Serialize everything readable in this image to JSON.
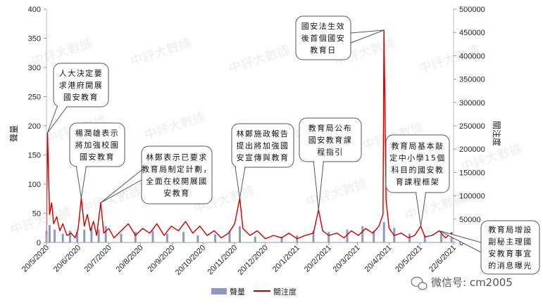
{
  "chart_data": {
    "type": "bar+line",
    "title": "",
    "left_axis": {
      "label": "聲量",
      "ylim": [
        0,
        400
      ],
      "ticks": [
        0,
        50,
        100,
        150,
        200,
        250,
        300,
        350,
        400
      ]
    },
    "right_axis": {
      "label": "關注度",
      "ylim": [
        0,
        500000
      ],
      "ticks": [
        0,
        50000,
        100000,
        150000,
        200000,
        250000,
        300000,
        350000,
        400000,
        450000,
        500000
      ]
    },
    "x_date_range": [
      "2020-05-20",
      "2021-06-22"
    ],
    "x_tick_labels": [
      "20/5/2020",
      "20/6/2020",
      "20/7/2020",
      "20/8/2020",
      "20/9/2020",
      "20/10/2020",
      "20/11/2020",
      "20/12/2020",
      "20/1/2021",
      "20/2/2021",
      "20/3/2021",
      "20/4/2021",
      "20/5/2021",
      "22/6/2021"
    ],
    "x_tick_dates": [
      "2020-05-20",
      "2020-06-20",
      "2020-07-20",
      "2020-08-20",
      "2020-09-20",
      "2020-10-20",
      "2020-11-20",
      "2020-12-20",
      "2021-01-20",
      "2021-02-20",
      "2021-03-20",
      "2021-04-20",
      "2021-05-20",
      "2021-06-22"
    ],
    "series": [
      {
        "name": "聲量",
        "kind": "bar",
        "axis": "left",
        "color": "#8c9bbd",
        "points": [
          {
            "date": "2020-05-20",
            "value": 20
          },
          {
            "date": "2020-05-23",
            "value": 30
          },
          {
            "date": "2020-05-28",
            "value": 22
          },
          {
            "date": "2020-06-05",
            "value": 15
          },
          {
            "date": "2020-06-12",
            "value": 20
          },
          {
            "date": "2020-06-19",
            "value": 18
          },
          {
            "date": "2020-06-26",
            "value": 22
          },
          {
            "date": "2020-07-03",
            "value": 25
          },
          {
            "date": "2020-07-10",
            "value": 22
          },
          {
            "date": "2020-07-17",
            "value": 28
          },
          {
            "date": "2020-08-01",
            "value": 15
          },
          {
            "date": "2020-08-15",
            "value": 18
          },
          {
            "date": "2020-09-01",
            "value": 20
          },
          {
            "date": "2020-09-15",
            "value": 15
          },
          {
            "date": "2020-10-01",
            "value": 18
          },
          {
            "date": "2020-10-15",
            "value": 12
          },
          {
            "date": "2020-11-01",
            "value": 14
          },
          {
            "date": "2020-11-15",
            "value": 20
          },
          {
            "date": "2020-11-25",
            "value": 28
          },
          {
            "date": "2020-12-10",
            "value": 10
          },
          {
            "date": "2021-01-05",
            "value": 10
          },
          {
            "date": "2021-01-20",
            "value": 12
          },
          {
            "date": "2021-02-05",
            "value": 20
          },
          {
            "date": "2021-02-20",
            "value": 18
          },
          {
            "date": "2021-03-10",
            "value": 22
          },
          {
            "date": "2021-03-25",
            "value": 28
          },
          {
            "date": "2021-04-05",
            "value": 20
          },
          {
            "date": "2021-04-15",
            "value": 35
          },
          {
            "date": "2021-04-25",
            "value": 25
          },
          {
            "date": "2021-05-10",
            "value": 15
          },
          {
            "date": "2021-05-25",
            "value": 12
          },
          {
            "date": "2021-06-10",
            "value": 15
          },
          {
            "date": "2021-06-20",
            "value": 18
          }
        ]
      },
      {
        "name": "關注度",
        "kind": "line",
        "axis": "right",
        "color": "#c00000",
        "points": [
          {
            "date": "2020-05-20",
            "value": 15000
          },
          {
            "date": "2020-05-21",
            "value": 235000
          },
          {
            "date": "2020-05-23",
            "value": 60000
          },
          {
            "date": "2020-05-25",
            "value": 85000
          },
          {
            "date": "2020-05-27",
            "value": 40000
          },
          {
            "date": "2020-05-30",
            "value": 55000
          },
          {
            "date": "2020-06-02",
            "value": 25000
          },
          {
            "date": "2020-06-05",
            "value": 40000
          },
          {
            "date": "2020-06-09",
            "value": 15000
          },
          {
            "date": "2020-06-13",
            "value": 20000
          },
          {
            "date": "2020-06-17",
            "value": 10000
          },
          {
            "date": "2020-06-20",
            "value": 30000
          },
          {
            "date": "2020-06-23",
            "value": 95000
          },
          {
            "date": "2020-06-26",
            "value": 35000
          },
          {
            "date": "2020-06-29",
            "value": 60000
          },
          {
            "date": "2020-07-02",
            "value": 25000
          },
          {
            "date": "2020-07-05",
            "value": 45000
          },
          {
            "date": "2020-07-08",
            "value": 15000
          },
          {
            "date": "2020-07-12",
            "value": 85000
          },
          {
            "date": "2020-07-15",
            "value": 20000
          },
          {
            "date": "2020-07-20",
            "value": 30000
          },
          {
            "date": "2020-07-25",
            "value": 10000
          },
          {
            "date": "2020-08-01",
            "value": 25000
          },
          {
            "date": "2020-08-08",
            "value": 40000
          },
          {
            "date": "2020-08-15",
            "value": 15000
          },
          {
            "date": "2020-08-22",
            "value": 30000
          },
          {
            "date": "2020-08-29",
            "value": 20000
          },
          {
            "date": "2020-09-05",
            "value": 40000
          },
          {
            "date": "2020-09-12",
            "value": 15000
          },
          {
            "date": "2020-09-19",
            "value": 35000
          },
          {
            "date": "2020-09-26",
            "value": 25000
          },
          {
            "date": "2020-10-03",
            "value": 45000
          },
          {
            "date": "2020-10-10",
            "value": 20000
          },
          {
            "date": "2020-10-17",
            "value": 35000
          },
          {
            "date": "2020-10-24",
            "value": 15000
          },
          {
            "date": "2020-10-31",
            "value": 25000
          },
          {
            "date": "2020-11-07",
            "value": 10000
          },
          {
            "date": "2020-11-14",
            "value": 20000
          },
          {
            "date": "2020-11-20",
            "value": 40000
          },
          {
            "date": "2020-11-25",
            "value": 95000
          },
          {
            "date": "2020-11-28",
            "value": 30000
          },
          {
            "date": "2020-12-05",
            "value": 15000
          },
          {
            "date": "2020-12-12",
            "value": 25000
          },
          {
            "date": "2020-12-20",
            "value": 8000
          },
          {
            "date": "2020-12-28",
            "value": 15000
          },
          {
            "date": "2021-01-05",
            "value": 10000
          },
          {
            "date": "2021-01-12",
            "value": 20000
          },
          {
            "date": "2021-01-20",
            "value": 8000
          },
          {
            "date": "2021-01-28",
            "value": 15000
          },
          {
            "date": "2021-02-05",
            "value": 20000
          },
          {
            "date": "2021-02-10",
            "value": 70000
          },
          {
            "date": "2021-02-14",
            "value": 25000
          },
          {
            "date": "2021-02-20",
            "value": 15000
          },
          {
            "date": "2021-02-28",
            "value": 20000
          },
          {
            "date": "2021-03-07",
            "value": 10000
          },
          {
            "date": "2021-03-14",
            "value": 25000
          },
          {
            "date": "2021-03-21",
            "value": 15000
          },
          {
            "date": "2021-03-28",
            "value": 30000
          },
          {
            "date": "2021-04-04",
            "value": 20000
          },
          {
            "date": "2021-04-10",
            "value": 35000
          },
          {
            "date": "2021-04-14",
            "value": 60000
          },
          {
            "date": "2021-04-15",
            "value": 455000
          },
          {
            "date": "2021-04-17",
            "value": 90000
          },
          {
            "date": "2021-04-20",
            "value": 30000
          },
          {
            "date": "2021-04-25",
            "value": 15000
          },
          {
            "date": "2021-05-02",
            "value": 20000
          },
          {
            "date": "2021-05-09",
            "value": 10000
          },
          {
            "date": "2021-05-15",
            "value": 15000
          },
          {
            "date": "2021-05-21",
            "value": 35000
          },
          {
            "date": "2021-05-25",
            "value": 12000
          },
          {
            "date": "2021-06-01",
            "value": 15000
          },
          {
            "date": "2021-06-08",
            "value": 25000
          },
          {
            "date": "2021-06-14",
            "value": 10000
          },
          {
            "date": "2021-06-20",
            "value": 20000
          },
          {
            "date": "2021-06-22",
            "value": 8000
          }
        ]
      }
    ],
    "annotations": [
      {
        "date": "2020-05-21",
        "lines": [
          "人大決定要",
          "求港府開展",
          "國安教育"
        ]
      },
      {
        "date": "2020-06-23",
        "lines": [
          "楊潤雄表示",
          "將加強校園",
          "國安教育"
        ]
      },
      {
        "date": "2020-07-12",
        "lines": [
          "林鄭表示已要求",
          "教育局制定計劃，",
          "全面在校開展國",
          "安教育"
        ]
      },
      {
        "date": "2020-11-25",
        "lines": [
          "林鄭施政報告",
          "提出將加強國",
          "安宣傳與教育"
        ]
      },
      {
        "date": "2021-02-10",
        "lines": [
          "教育局公布",
          "國安教育課",
          "程指引"
        ]
      },
      {
        "date": "2021-04-15",
        "lines": [
          "國安法生效",
          "後首個國安",
          "教育日"
        ]
      },
      {
        "date": "2021-05-21",
        "lines": [
          "教育局基本敲",
          "定中小學15個",
          "科目的國安教",
          "育課程框架"
        ]
      },
      {
        "date": "2021-06-08",
        "lines": [
          "教育局增設",
          "副秘主理國",
          "安教育事宜",
          "的消息曝光"
        ]
      }
    ],
    "legend": {
      "placement": "bottom-center",
      "items": [
        "聲量",
        "關注度"
      ]
    },
    "watermark": "中評大數據",
    "credit": "微信号: cm2005"
  }
}
